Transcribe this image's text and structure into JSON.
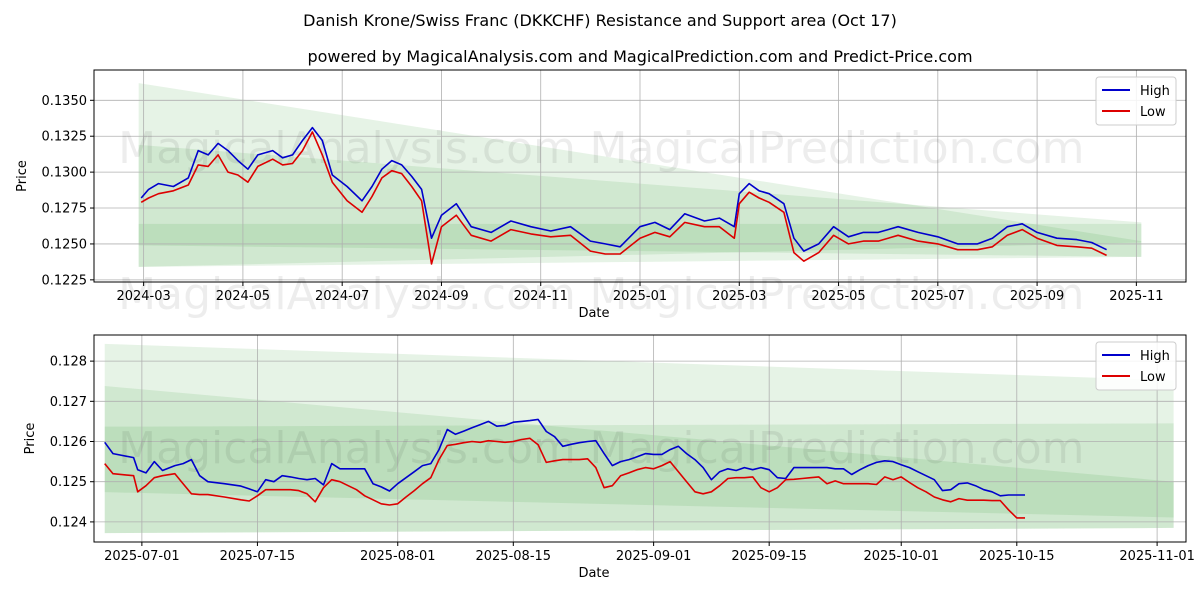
{
  "title": "Danish Krone/Swiss Franc (DKKCHF) Resistance and Support area (Oct 17)",
  "subtitle": "powered by MagicalAnalysis.com and MagicalPrediction.com and Predict-Price.com",
  "watermarks": [
    "MagicalAnalysis.com",
    "MagicalPrediction.com"
  ],
  "colors": {
    "high": "#0000cc",
    "low": "#dd0000",
    "band": "#2e9e2e"
  },
  "chart_data": [
    {
      "type": "line",
      "xlabel": "Date",
      "ylabel": "Price",
      "legend": {
        "position": "top-right",
        "labels": [
          "High",
          "Low"
        ]
      },
      "grid": true,
      "xlim": [
        -1.0,
        21.0
      ],
      "ylim": [
        0.12235,
        0.13711
      ],
      "yticks": [
        {
          "v": 0.1225,
          "label": "0.1225"
        },
        {
          "v": 0.125,
          "label": "0.1250"
        },
        {
          "v": 0.1275,
          "label": "0.1275"
        },
        {
          "v": 0.13,
          "label": "0.1300"
        },
        {
          "v": 0.1325,
          "label": "0.1325"
        },
        {
          "v": 0.135,
          "label": "0.1350"
        }
      ],
      "xticks": [
        {
          "v": 0,
          "label": "2024-03"
        },
        {
          "v": 2,
          "label": "2024-05"
        },
        {
          "v": 4,
          "label": "2024-07"
        },
        {
          "v": 6,
          "label": "2024-09"
        },
        {
          "v": 8,
          "label": "2024-11"
        },
        {
          "v": 10,
          "label": "2025-01"
        },
        {
          "v": 12,
          "label": "2025-03"
        },
        {
          "v": 14,
          "label": "2025-05"
        },
        {
          "v": 16,
          "label": "2025-07"
        },
        {
          "v": 18,
          "label": "2025-09"
        },
        {
          "v": 20,
          "label": "2025-11"
        }
      ],
      "bands": [
        {
          "x0": -0.1,
          "x1": 20.1,
          "upper0": 0.1362,
          "upper1": 0.1252,
          "lower0": 0.1234,
          "lower1": 0.1241
        },
        {
          "x0": -0.1,
          "x1": 20.1,
          "upper0": 0.1319,
          "upper1": 0.1265,
          "lower0": 0.1249,
          "lower1": 0.1241
        },
        {
          "x0": -0.1,
          "x1": 20.1,
          "upper0": 0.1264,
          "upper1": 0.1264,
          "lower0": 0.1234,
          "lower1": 0.1251
        }
      ],
      "series": [
        {
          "name": "High",
          "x": [
            -0.05,
            0.1,
            0.3,
            0.6,
            0.9,
            1.1,
            1.3,
            1.5,
            1.7,
            1.9,
            2.1,
            2.3,
            2.6,
            2.8,
            3.0,
            3.2,
            3.4,
            3.6,
            3.8,
            4.1,
            4.4,
            4.6,
            4.8,
            5.0,
            5.2,
            5.4,
            5.6,
            5.8,
            6.0,
            6.3,
            6.6,
            7.0,
            7.4,
            7.8,
            8.2,
            8.6,
            9.0,
            9.3,
            9.6,
            10.0,
            10.3,
            10.6,
            10.9,
            11.3,
            11.6,
            11.9,
            12.0,
            12.2,
            12.4,
            12.6,
            12.9,
            13.1,
            13.3,
            13.6,
            13.9,
            14.2,
            14.5,
            14.8,
            15.2,
            15.6,
            16.0,
            16.4,
            16.8,
            17.1,
            17.4,
            17.7,
            18.0,
            18.4,
            18.8,
            19.1,
            19.4
          ],
          "y": [
            0.1282,
            0.1288,
            0.1292,
            0.129,
            0.1296,
            0.1315,
            0.1312,
            0.132,
            0.1315,
            0.1308,
            0.1302,
            0.1312,
            0.1315,
            0.131,
            0.1312,
            0.1322,
            0.1331,
            0.1322,
            0.1298,
            0.129,
            0.128,
            0.129,
            0.1302,
            0.1308,
            0.1305,
            0.1297,
            0.1288,
            0.1254,
            0.127,
            0.1278,
            0.1262,
            0.1258,
            0.1266,
            0.1262,
            0.1259,
            0.1262,
            0.1252,
            0.125,
            0.1248,
            0.1262,
            0.1265,
            0.126,
            0.1271,
            0.1266,
            0.1268,
            0.1262,
            0.1285,
            0.1292,
            0.1287,
            0.1285,
            0.1278,
            0.1254,
            0.1245,
            0.125,
            0.1262,
            0.1255,
            0.1258,
            0.1258,
            0.1262,
            0.1258,
            0.1255,
            0.125,
            0.125,
            0.1254,
            0.1262,
            0.1264,
            0.1258,
            0.1254,
            0.1253,
            0.1251,
            0.1246
          ]
        },
        {
          "name": "Low",
          "x": [
            -0.05,
            0.1,
            0.3,
            0.6,
            0.9,
            1.1,
            1.3,
            1.5,
            1.7,
            1.9,
            2.1,
            2.3,
            2.6,
            2.8,
            3.0,
            3.2,
            3.4,
            3.6,
            3.8,
            4.1,
            4.4,
            4.6,
            4.8,
            5.0,
            5.2,
            5.4,
            5.6,
            5.8,
            6.0,
            6.3,
            6.6,
            7.0,
            7.4,
            7.8,
            8.2,
            8.6,
            9.0,
            9.3,
            9.6,
            10.0,
            10.3,
            10.6,
            10.9,
            11.3,
            11.6,
            11.9,
            12.0,
            12.2,
            12.4,
            12.6,
            12.9,
            13.1,
            13.3,
            13.6,
            13.9,
            14.2,
            14.5,
            14.8,
            15.2,
            15.6,
            16.0,
            16.4,
            16.8,
            17.1,
            17.4,
            17.7,
            18.0,
            18.4,
            18.8,
            19.1,
            19.4
          ],
          "y": [
            0.1279,
            0.1282,
            0.1285,
            0.1287,
            0.1291,
            0.1305,
            0.1304,
            0.1312,
            0.13,
            0.1298,
            0.1293,
            0.1304,
            0.1309,
            0.1305,
            0.1306,
            0.1315,
            0.1328,
            0.1312,
            0.1293,
            0.128,
            0.1272,
            0.1283,
            0.1296,
            0.1301,
            0.1299,
            0.129,
            0.128,
            0.1236,
            0.1262,
            0.127,
            0.1256,
            0.1252,
            0.126,
            0.1257,
            0.1255,
            0.1256,
            0.1245,
            0.1243,
            0.1243,
            0.1254,
            0.1258,
            0.1255,
            0.1265,
            0.1262,
            0.1262,
            0.1254,
            0.1278,
            0.1286,
            0.1282,
            0.1279,
            0.1272,
            0.1244,
            0.1238,
            0.1244,
            0.1256,
            0.125,
            0.1252,
            0.1252,
            0.1256,
            0.1252,
            0.125,
            0.1246,
            0.1246,
            0.1248,
            0.1256,
            0.126,
            0.1254,
            0.1249,
            0.1248,
            0.1247,
            0.1242
          ]
        }
      ]
    },
    {
      "type": "line",
      "xlabel": "Date",
      "ylabel": "Price",
      "legend": {
        "position": "top-right",
        "labels": [
          "High",
          "Low"
        ]
      },
      "grid": true,
      "xlim": [
        -5.8,
        126.5
      ],
      "ylim": [
        0.1235,
        0.12865
      ],
      "yticks": [
        {
          "v": 0.124,
          "label": "0.124"
        },
        {
          "v": 0.125,
          "label": "0.125"
        },
        {
          "v": 0.126,
          "label": "0.126"
        },
        {
          "v": 0.127,
          "label": "0.127"
        },
        {
          "v": 0.128,
          "label": "0.128"
        }
      ],
      "xticks": [
        {
          "v": 0,
          "label": "2025-07-01"
        },
        {
          "v": 14,
          "label": "2025-07-15"
        },
        {
          "v": 31,
          "label": "2025-08-01"
        },
        {
          "v": 45,
          "label": "2025-08-15"
        },
        {
          "v": 62,
          "label": "2025-09-01"
        },
        {
          "v": 76,
          "label": "2025-09-15"
        },
        {
          "v": 92,
          "label": "2025-10-01"
        },
        {
          "v": 106,
          "label": "2025-10-15"
        },
        {
          "v": 123,
          "label": "2025-11-01"
        }
      ],
      "bands": [
        {
          "x0": -4.5,
          "x1": 125.0,
          "upper0": 0.12843,
          "upper1": 0.12752,
          "lower0": 0.12372,
          "lower1": 0.12385
        },
        {
          "x0": -4.5,
          "x1": 125.0,
          "upper0": 0.12738,
          "upper1": 0.125,
          "lower0": 0.12372,
          "lower1": 0.12385
        },
        {
          "x0": -4.5,
          "x1": 125.0,
          "upper0": 0.12637,
          "upper1": 0.12645,
          "lower0": 0.12474,
          "lower1": 0.12411
        }
      ],
      "series": [
        {
          "name": "High",
          "x": [
            -4.5,
            -3.5,
            -1,
            -0.5,
            0.5,
            1.5,
            2.5,
            4,
            5,
            6,
            7,
            8,
            10,
            12,
            13,
            14,
            15,
            16,
            17,
            18,
            19,
            20,
            21,
            22,
            23,
            24,
            25,
            26,
            27,
            28,
            29,
            30,
            31,
            32,
            33,
            34,
            35,
            36,
            37,
            38,
            39,
            40,
            41,
            42,
            43,
            44,
            45,
            46,
            47,
            48,
            49,
            50,
            51,
            52,
            53,
            54,
            55,
            56,
            57,
            58,
            59,
            60,
            61,
            62,
            63,
            64,
            65,
            66,
            67,
            68,
            69,
            70,
            71,
            72,
            73,
            74,
            75,
            76,
            77,
            78,
            79,
            80,
            81,
            82,
            83,
            84,
            85,
            86,
            87,
            88,
            89,
            90,
            91,
            92,
            93,
            94,
            95,
            96,
            97,
            98,
            99,
            100,
            101,
            102,
            103,
            104,
            105,
            106,
            107
          ],
          "y": [
            0.12598,
            0.1257,
            0.1256,
            0.1253,
            0.12522,
            0.1255,
            0.12528,
            0.1254,
            0.12545,
            0.12555,
            0.12515,
            0.125,
            0.12495,
            0.12489,
            0.12482,
            0.12475,
            0.12505,
            0.125,
            0.12515,
            0.12512,
            0.12508,
            0.12505,
            0.12508,
            0.12492,
            0.12545,
            0.12532,
            0.12532,
            0.12532,
            0.12532,
            0.12495,
            0.12487,
            0.12477,
            0.12495,
            0.1251,
            0.12525,
            0.1254,
            0.12545,
            0.1258,
            0.1263,
            0.12618,
            0.12626,
            0.12634,
            0.12642,
            0.1265,
            0.12638,
            0.1264,
            0.12648,
            0.1265,
            0.12652,
            0.12655,
            0.12625,
            0.12612,
            0.12588,
            0.12593,
            0.12597,
            0.126,
            0.12602,
            0.1257,
            0.1254,
            0.1255,
            0.12555,
            0.12562,
            0.1257,
            0.12568,
            0.12568,
            0.1258,
            0.12588,
            0.1257,
            0.12555,
            0.12535,
            0.12505,
            0.12525,
            0.12532,
            0.12528,
            0.12535,
            0.1253,
            0.12535,
            0.1253,
            0.1251,
            0.12508,
            0.12535,
            0.12535,
            0.12535,
            0.12535,
            0.12535,
            0.12532,
            0.12532,
            0.12518,
            0.1253,
            0.1254,
            0.12548,
            0.12552,
            0.1255,
            0.12542,
            0.12535,
            0.12525,
            0.12515,
            0.12505,
            0.12478,
            0.1248,
            0.12495,
            0.12497,
            0.1249,
            0.1248,
            0.12475,
            0.12465,
            0.12467,
            0.12467,
            0.12467
          ]
        },
        {
          "name": "Low",
          "x": [
            -4.5,
            -3.5,
            -1,
            -0.5,
            0.5,
            1.5,
            2.5,
            4,
            5,
            6,
            7,
            8,
            10,
            12,
            13,
            14,
            15,
            16,
            17,
            18,
            19,
            20,
            21,
            22,
            23,
            24,
            25,
            26,
            27,
            28,
            29,
            30,
            31,
            32,
            33,
            34,
            35,
            36,
            37,
            38,
            39,
            40,
            41,
            42,
            43,
            44,
            45,
            46,
            47,
            48,
            49,
            50,
            51,
            52,
            53,
            54,
            55,
            56,
            57,
            58,
            59,
            60,
            61,
            62,
            63,
            64,
            65,
            66,
            67,
            68,
            69,
            70,
            71,
            72,
            73,
            74,
            75,
            76,
            77,
            78,
            79,
            80,
            81,
            82,
            83,
            84,
            85,
            86,
            87,
            88,
            89,
            90,
            91,
            92,
            93,
            94,
            95,
            96,
            97,
            98,
            99,
            100,
            101,
            102,
            103,
            104,
            105,
            106,
            107
          ],
          "y": [
            0.12545,
            0.1252,
            0.12515,
            0.12475,
            0.1249,
            0.1251,
            0.12515,
            0.1252,
            0.12495,
            0.1247,
            0.12468,
            0.12468,
            0.12462,
            0.12455,
            0.12452,
            0.12465,
            0.1248,
            0.1248,
            0.1248,
            0.1248,
            0.12478,
            0.1247,
            0.1245,
            0.12485,
            0.12505,
            0.125,
            0.1249,
            0.1248,
            0.12465,
            0.12455,
            0.12445,
            0.12442,
            0.12445,
            0.12462,
            0.12478,
            0.12495,
            0.1251,
            0.12555,
            0.1259,
            0.12593,
            0.12597,
            0.126,
            0.12598,
            0.12602,
            0.126,
            0.12598,
            0.126,
            0.12605,
            0.12608,
            0.12592,
            0.12548,
            0.12552,
            0.12555,
            0.12555,
            0.12555,
            0.12557,
            0.12535,
            0.12485,
            0.1249,
            0.12515,
            0.12522,
            0.1253,
            0.12535,
            0.12532,
            0.1254,
            0.1255,
            0.12525,
            0.125,
            0.12475,
            0.1247,
            0.12475,
            0.1249,
            0.12508,
            0.1251,
            0.1251,
            0.12512,
            0.12485,
            0.12475,
            0.12485,
            0.12505,
            0.12506,
            0.12508,
            0.1251,
            0.12512,
            0.12495,
            0.12502,
            0.12495,
            0.12495,
            0.12495,
            0.12495,
            0.12493,
            0.12512,
            0.12505,
            0.12512,
            0.12498,
            0.12485,
            0.12475,
            0.12462,
            0.12455,
            0.1245,
            0.12458,
            0.12454,
            0.12454,
            0.12454,
            0.12453,
            0.12453,
            0.1243,
            0.1241,
            0.1241
          ]
        }
      ]
    }
  ]
}
